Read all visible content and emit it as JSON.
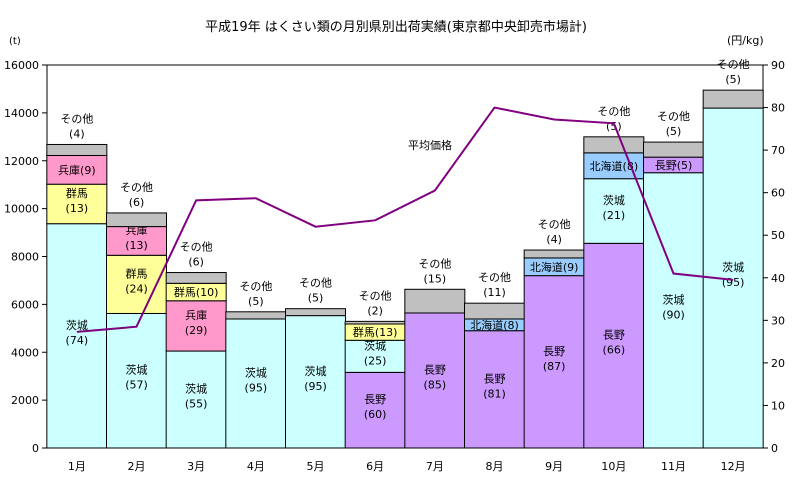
{
  "chart_data": {
    "type": "bar",
    "subtype": "stacked-bar-with-line",
    "title": "平成19年 はくさい類の月別県別出荷実績(東京都中央卸売市場計)",
    "ylabel_left": "(t)",
    "ylabel_right": "(円/kg)",
    "ylim_left": [
      0,
      16000
    ],
    "ylim_right": [
      0,
      90
    ],
    "yticks_left": [
      "0",
      "2000",
      "4000",
      "6000",
      "8000",
      "10000",
      "12000",
      "14000",
      "16000"
    ],
    "yticks_right": [
      "0",
      "10",
      "20",
      "30",
      "40",
      "50",
      "60",
      "70",
      "80",
      "90"
    ],
    "categories": [
      "1月",
      "2月",
      "3月",
      "4月",
      "5月",
      "6月",
      "7月",
      "8月",
      "9月",
      "10月",
      "11月",
      "12月"
    ],
    "colors": {
      "茨城": "#ccffff",
      "群馬": "#ffff99",
      "兵庫": "#ff99cc",
      "長野": "#cc99ff",
      "北海道": "#99ccff",
      "その他": "#c0c0c0",
      "line": "#800080",
      "edge": "#000000"
    },
    "bars": [
      {
        "month": "1月",
        "segments": [
          {
            "pref": "茨城",
            "value": 9370,
            "label": "茨城",
            "pct": "(74)"
          },
          {
            "pref": "群馬",
            "value": 1650,
            "label": "群馬",
            "pct": "(13)"
          },
          {
            "pref": "兵庫",
            "value": 1200,
            "label": "兵庫(9)"
          },
          {
            "pref": "その他",
            "value": 460,
            "label": "その他",
            "pct": "(4)"
          }
        ]
      },
      {
        "month": "2月",
        "segments": [
          {
            "pref": "茨城",
            "value": 5620,
            "label": "茨城",
            "pct": "(57)"
          },
          {
            "pref": "群馬",
            "value": 2430,
            "label": "群馬",
            "pct": "(24)"
          },
          {
            "pref": "兵庫",
            "value": 1200,
            "label": "兵庫",
            "pct": "(13)"
          },
          {
            "pref": "その他",
            "value": 570,
            "label": "その他",
            "pct": "(6)"
          }
        ]
      },
      {
        "month": "3月",
        "segments": [
          {
            "pref": "茨城",
            "value": 4050,
            "label": "茨城",
            "pct": "(55)"
          },
          {
            "pref": "兵庫",
            "value": 2100,
            "label": "兵庫",
            "pct": "(29)"
          },
          {
            "pref": "群馬",
            "value": 730,
            "label": "群馬(10)"
          },
          {
            "pref": "その他",
            "value": 450,
            "label": "その他",
            "pct": "(6)"
          }
        ]
      },
      {
        "month": "4月",
        "segments": [
          {
            "pref": "茨城",
            "value": 5390,
            "label": "茨城",
            "pct": "(95)"
          },
          {
            "pref": "その他",
            "value": 300,
            "label": "その他",
            "pct": "(5)"
          }
        ]
      },
      {
        "month": "5月",
        "segments": [
          {
            "pref": "茨城",
            "value": 5530,
            "label": "茨城",
            "pct": "(95)"
          },
          {
            "pref": "その他",
            "value": 290,
            "label": "その他",
            "pct": "(5)"
          }
        ]
      },
      {
        "month": "6月",
        "segments": [
          {
            "pref": "長野",
            "value": 3160,
            "label": "長野",
            "pct": "(60)"
          },
          {
            "pref": "茨城",
            "value": 1340,
            "label": "茨城",
            "pct": "(25)"
          },
          {
            "pref": "群馬",
            "value": 680,
            "label": "群馬(13)"
          },
          {
            "pref": "その他",
            "value": 110,
            "label": "その他",
            "pct": "(2)"
          }
        ]
      },
      {
        "month": "7月",
        "segments": [
          {
            "pref": "長野",
            "value": 5640,
            "label": "長野",
            "pct": "(85)"
          },
          {
            "pref": "その他",
            "value": 990,
            "label": "その他",
            "pct": "(15)"
          }
        ]
      },
      {
        "month": "8月",
        "segments": [
          {
            "pref": "長野",
            "value": 4900,
            "label": "長野",
            "pct": "(81)"
          },
          {
            "pref": "北海道",
            "value": 490,
            "label": "北海道(8)"
          },
          {
            "pref": "その他",
            "value": 660,
            "label": "その他",
            "pct": "(11)"
          }
        ]
      },
      {
        "month": "9月",
        "segments": [
          {
            "pref": "長野",
            "value": 7200,
            "label": "長野",
            "pct": "(87)"
          },
          {
            "pref": "北海道",
            "value": 740,
            "label": "北海道(9)"
          },
          {
            "pref": "その他",
            "value": 330,
            "label": "その他",
            "pct": "(4)"
          }
        ]
      },
      {
        "month": "10月",
        "segments": [
          {
            "pref": "長野",
            "value": 8550,
            "label": "長野",
            "pct": "(66)"
          },
          {
            "pref": "茨城",
            "value": 2700,
            "label": "茨城",
            "pct": "(21)"
          },
          {
            "pref": "北海道",
            "value": 1080,
            "label": "北海道(8)"
          },
          {
            "pref": "その他",
            "value": 670,
            "label": "その他",
            "pct": "(5)"
          }
        ]
      },
      {
        "month": "11月",
        "segments": [
          {
            "pref": "茨城",
            "value": 11500,
            "label": "茨城",
            "pct": "(90)"
          },
          {
            "pref": "長野",
            "value": 650,
            "label": "長野(5)"
          },
          {
            "pref": "その他",
            "value": 630,
            "label": "その他",
            "pct": "(5)"
          }
        ]
      },
      {
        "month": "12月",
        "segments": [
          {
            "pref": "茨城",
            "value": 14200,
            "label": "茨城",
            "pct": "(95)"
          },
          {
            "pref": "その他",
            "value": 750,
            "label": "その他",
            "pct": "(5)"
          }
        ]
      }
    ],
    "line": {
      "name": "平均価格",
      "axis": "right",
      "values": [
        27.3,
        28.5,
        58.2,
        58.7,
        52.0,
        53.5,
        60.5,
        80.0,
        77.2,
        76.3,
        41.0,
        39.5
      ]
    }
  }
}
